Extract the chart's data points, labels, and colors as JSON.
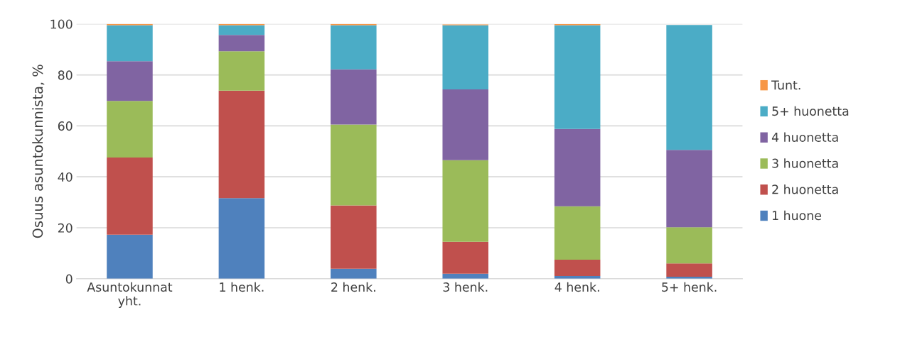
{
  "chart_data": {
    "type": "bar",
    "stacked": true,
    "ylabel": "Osuus asuntokunnista, %",
    "categories": [
      "Asuntokunnat\nyht.",
      "1 henk.",
      "2 henk.",
      "3 henk.",
      "4 henk.",
      "5+ henk."
    ],
    "series": [
      {
        "name": "1 huone",
        "color": "#4f81bd",
        "values": [
          17.3,
          31.6,
          3.9,
          2.0,
          1.1,
          0.8
        ]
      },
      {
        "name": "2 huonetta",
        "color": "#c0504d",
        "values": [
          30.3,
          42.2,
          24.9,
          12.5,
          6.4,
          5.2
        ]
      },
      {
        "name": "3 huonetta",
        "color": "#9bbb59",
        "values": [
          22.2,
          15.5,
          31.7,
          32.0,
          20.9,
          14.2
        ]
      },
      {
        "name": "4 huonetta",
        "color": "#8064a2",
        "values": [
          15.6,
          6.4,
          21.7,
          27.8,
          30.4,
          30.4
        ]
      },
      {
        "name": "5+ huonetta",
        "color": "#4bacc6",
        "values": [
          14.1,
          3.8,
          17.3,
          25.2,
          40.7,
          49.0
        ]
      },
      {
        "name": "Tunt.",
        "color": "#f79646",
        "values": [
          0.5,
          0.5,
          0.5,
          0.3,
          0.4,
          0.0
        ]
      }
    ],
    "ylim": [
      0,
      100
    ],
    "yticks": [
      0,
      20,
      40,
      60,
      80,
      100
    ],
    "grid": "y",
    "legend": "right"
  }
}
